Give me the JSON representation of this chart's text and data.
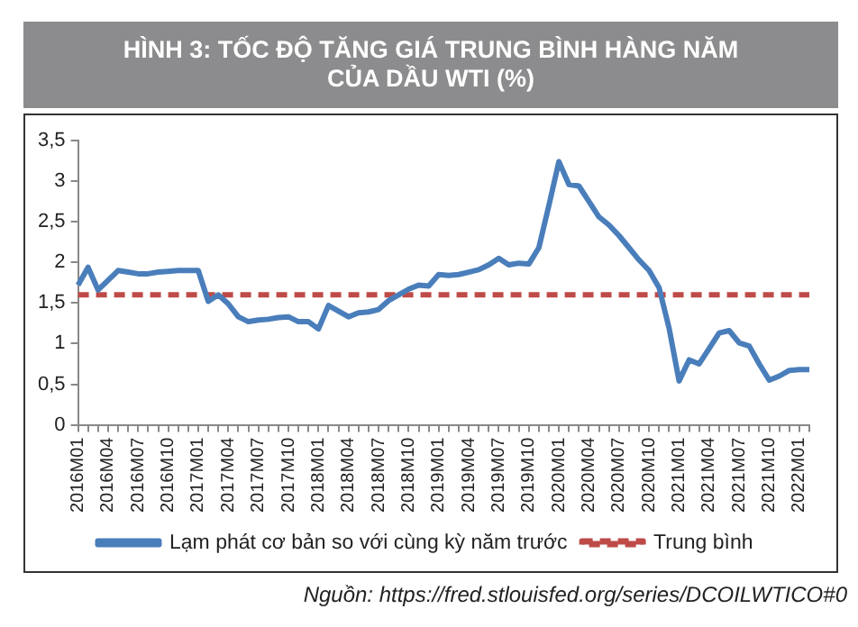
{
  "chart_data": {
    "type": "line",
    "title": "HÌNH 3: TỐC ĐỘ TĂNG GIÁ TRUNG BÌNH HÀNG NĂM CỦA DẦU WTI (%)",
    "categories": [
      "2016M01",
      null,
      null,
      "2016M04",
      null,
      null,
      "2016M07",
      null,
      null,
      "2016M10",
      null,
      null,
      "2017M01",
      null,
      null,
      "2017M04",
      null,
      null,
      "2017M07",
      null,
      null,
      "2017M10",
      null,
      null,
      "2018M01",
      null,
      null,
      "2018M04",
      null,
      null,
      "2018M07",
      null,
      null,
      "2018M10",
      null,
      null,
      "2019M01",
      null,
      null,
      "2019M04",
      null,
      null,
      "2019M07",
      null,
      null,
      "2019M10",
      null,
      null,
      "2020M01",
      null,
      null,
      "2020M04",
      null,
      null,
      "2020M07",
      null,
      null,
      "2020M10",
      null,
      null,
      "2021M01",
      null,
      null,
      "2021M04",
      null,
      null,
      "2021M07",
      null,
      null,
      "2021M10",
      null,
      null,
      "2022M01",
      null
    ],
    "series": [
      {
        "name": "Lạm phát cơ bản so với cùng kỳ năm trước",
        "color": "#4a7ebb",
        "values": [
          1.72,
          1.94,
          1.66,
          1.78,
          1.9,
          1.88,
          1.86,
          1.86,
          1.88,
          1.89,
          1.9,
          1.9,
          1.9,
          1.52,
          1.6,
          1.49,
          1.33,
          1.27,
          1.29,
          1.3,
          1.32,
          1.33,
          1.27,
          1.27,
          1.18,
          1.47,
          1.4,
          1.33,
          1.38,
          1.39,
          1.42,
          1.53,
          1.6,
          1.67,
          1.72,
          1.71,
          1.85,
          1.84,
          1.85,
          1.88,
          1.91,
          1.97,
          2.05,
          1.97,
          1.99,
          1.98,
          2.18,
          2.7,
          3.24,
          2.96,
          2.94,
          2.75,
          2.56,
          2.46,
          2.33,
          2.18,
          2.03,
          1.9,
          1.69,
          1.19,
          0.54,
          0.8,
          0.75,
          0.94,
          1.13,
          1.16,
          1.01,
          0.97,
          0.75,
          0.55,
          0.6,
          0.67,
          0.68,
          0.68
        ]
      },
      {
        "name": "Trung bình",
        "color": "#be4b48",
        "line_style": "dashed",
        "values": [
          1.6,
          1.6,
          1.6,
          1.6,
          1.6,
          1.6,
          1.6,
          1.6,
          1.6,
          1.6,
          1.6,
          1.6,
          1.6,
          1.6,
          1.6,
          1.6,
          1.6,
          1.6,
          1.6,
          1.6,
          1.6,
          1.6,
          1.6,
          1.6,
          1.6,
          1.6,
          1.6,
          1.6,
          1.6,
          1.6,
          1.6,
          1.6,
          1.6,
          1.6,
          1.6,
          1.6,
          1.6,
          1.6,
          1.6,
          1.6,
          1.6,
          1.6,
          1.6,
          1.6,
          1.6,
          1.6,
          1.6,
          1.6,
          1.6,
          1.6,
          1.6,
          1.6,
          1.6,
          1.6,
          1.6,
          1.6,
          1.6,
          1.6,
          1.6,
          1.6,
          1.6,
          1.6,
          1.6,
          1.6,
          1.6,
          1.6,
          1.6,
          1.6,
          1.6,
          1.6,
          1.6,
          1.6,
          1.6,
          1.6
        ]
      }
    ],
    "ylim": [
      0,
      3.5
    ],
    "yticks": [
      0,
      {
        "value": 0.5,
        "label": "0,5"
      },
      1,
      {
        "value": 1.5,
        "label": "1,5"
      },
      2,
      {
        "value": 2.5,
        "label": "2,5"
      },
      3,
      {
        "value": 3.5,
        "label": "3,5"
      }
    ],
    "grid": false,
    "legend": "bottom",
    "marker": "none",
    "line_style": "solid",
    "annotations": [
      "Nguồn: https://fred.stlouisfed.org/series/DCOILWTICO#0"
    ]
  }
}
